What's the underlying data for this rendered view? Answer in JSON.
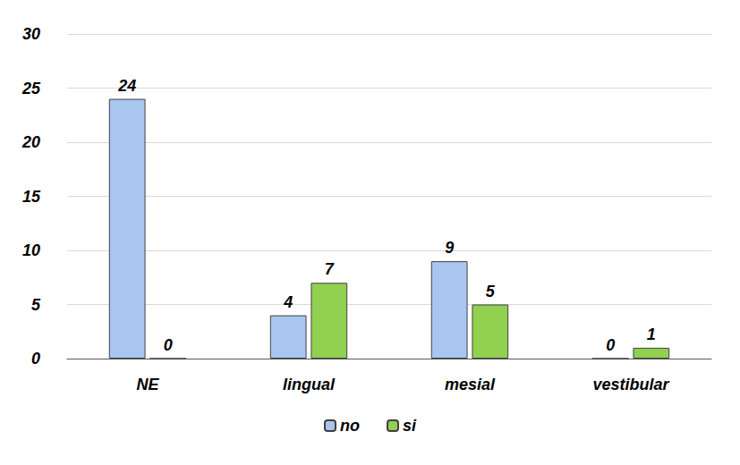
{
  "chart_data": {
    "type": "bar",
    "categories": [
      "NE",
      "lingual",
      "mesial",
      "vestibular"
    ],
    "series": [
      {
        "name": "no",
        "color": "#a9c6f0",
        "values": [
          24,
          4,
          9,
          0
        ]
      },
      {
        "name": "si",
        "color": "#92d050",
        "values": [
          0,
          7,
          5,
          1
        ]
      }
    ],
    "ylim": [
      0,
      30
    ],
    "yticks": [
      0,
      5,
      10,
      15,
      20,
      25,
      30
    ],
    "grid": true,
    "legend": "bottom",
    "data_labels": true
  }
}
